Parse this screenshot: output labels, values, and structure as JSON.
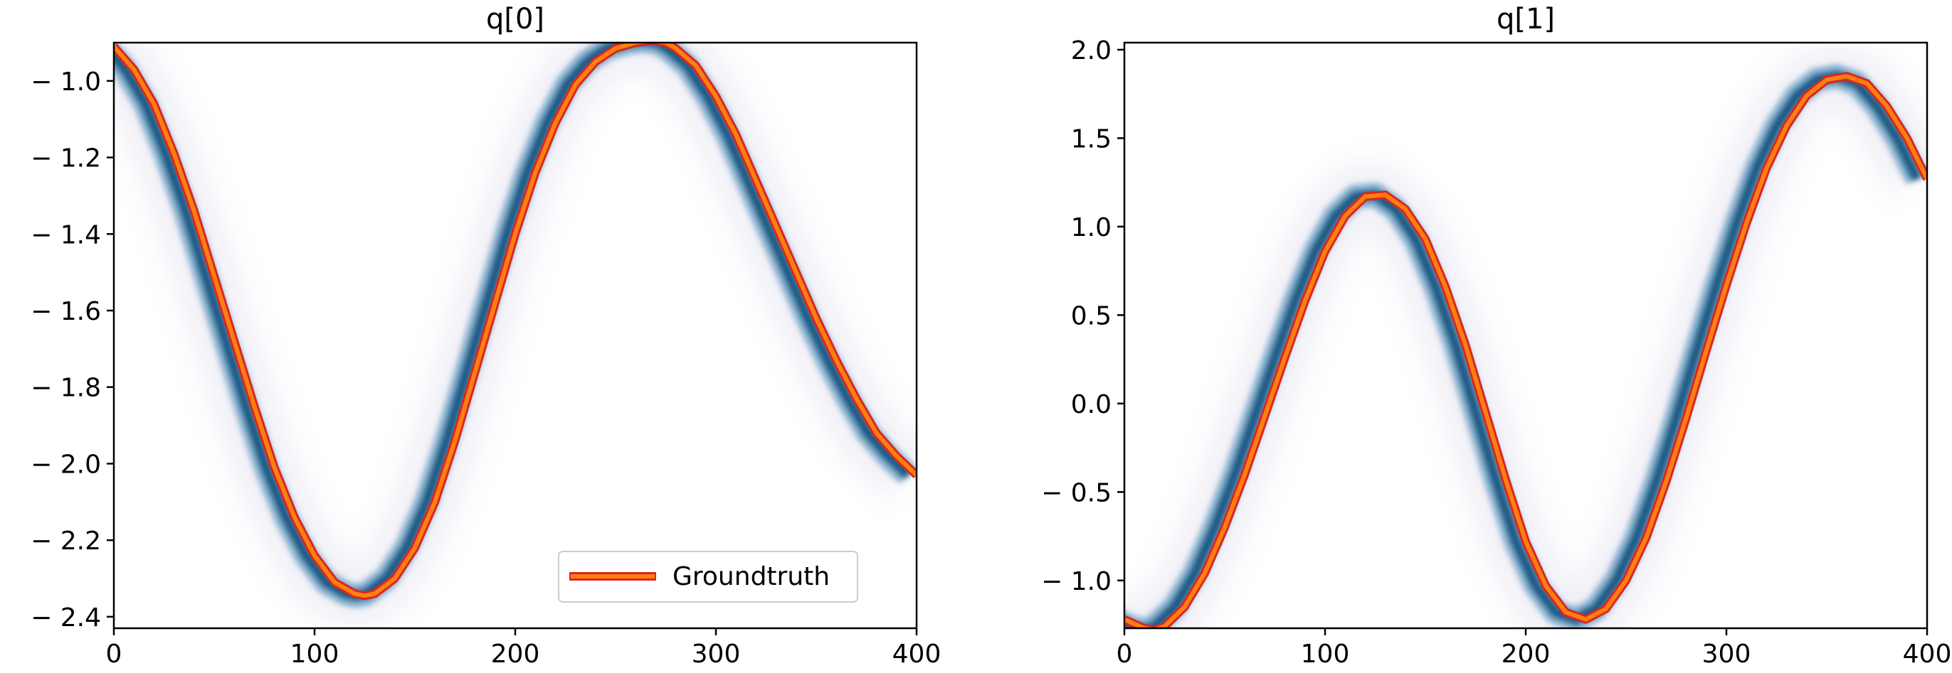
{
  "chart_data": [
    {
      "type": "line",
      "title": "q[0]",
      "xlabel": "",
      "ylabel": "",
      "xlim": [
        0,
        400
      ],
      "ylim": [
        -2.43,
        -0.9
      ],
      "y_inverted": true,
      "xticks": [
        0,
        100,
        200,
        300,
        400
      ],
      "xtick_labels": [
        "0",
        "100",
        "200",
        "300",
        "400"
      ],
      "yticks": [
        -1.0,
        -1.2,
        -1.4,
        -1.6,
        -1.8,
        -2.0,
        -2.2,
        -2.4
      ],
      "ytick_labels": [
        "− 1.0",
        "− 1.2",
        "− 1.4",
        "− 1.6",
        "− 1.8",
        "− 2.0",
        "− 2.2",
        "− 2.4"
      ],
      "grid": false,
      "legend": {
        "placement": "lower-right",
        "entries": [
          "Groundtruth"
        ]
      },
      "series": [
        {
          "name": "Groundtruth",
          "color": "#ff7f0e",
          "x": [
            0,
            10,
            20,
            30,
            40,
            50,
            60,
            70,
            80,
            90,
            100,
            110,
            120,
            125,
            130,
            140,
            150,
            160,
            170,
            180,
            190,
            200,
            210,
            220,
            230,
            240,
            250,
            260,
            268,
            275,
            280,
            290,
            300,
            310,
            320,
            330,
            340,
            350,
            360,
            370,
            380,
            390,
            400
          ],
          "y": [
            -0.91,
            -0.97,
            -1.06,
            -1.19,
            -1.34,
            -1.51,
            -1.68,
            -1.85,
            -2.01,
            -2.14,
            -2.24,
            -2.31,
            -2.34,
            -2.345,
            -2.34,
            -2.3,
            -2.22,
            -2.1,
            -1.94,
            -1.76,
            -1.58,
            -1.4,
            -1.24,
            -1.11,
            -1.01,
            -0.95,
            -0.915,
            -0.9,
            -0.895,
            -0.9,
            -0.915,
            -0.96,
            -1.04,
            -1.14,
            -1.26,
            -1.38,
            -1.5,
            -1.62,
            -1.73,
            -1.83,
            -1.92,
            -1.98,
            -2.03
          ]
        }
      ]
    },
    {
      "type": "line",
      "title": "q[1]",
      "xlabel": "",
      "ylabel": "",
      "xlim": [
        0,
        400
      ],
      "ylim": [
        -1.27,
        2.04
      ],
      "xticks": [
        0,
        100,
        200,
        300,
        400
      ],
      "xtick_labels": [
        "0",
        "100",
        "200",
        "300",
        "400"
      ],
      "yticks": [
        2.0,
        1.5,
        1.0,
        0.5,
        0.0,
        -0.5,
        -1.0
      ],
      "ytick_labels": [
        "2.0",
        "1.5",
        "1.0",
        "0.5",
        "0.0",
        "− 0.5",
        "− 1.0"
      ],
      "grid": false,
      "series": [
        {
          "name": "Groundtruth",
          "color": "#ff7f0e",
          "x": [
            0,
            10,
            15,
            20,
            30,
            40,
            50,
            60,
            70,
            80,
            90,
            100,
            110,
            120,
            130,
            140,
            150,
            160,
            170,
            180,
            190,
            200,
            210,
            220,
            230,
            240,
            250,
            260,
            270,
            280,
            290,
            300,
            310,
            320,
            330,
            340,
            350,
            360,
            370,
            380,
            390,
            400
          ],
          "y": [
            -1.22,
            -1.27,
            -1.28,
            -1.26,
            -1.15,
            -0.96,
            -0.7,
            -0.4,
            -0.07,
            0.26,
            0.58,
            0.86,
            1.06,
            1.17,
            1.18,
            1.1,
            0.93,
            0.66,
            0.33,
            -0.05,
            -0.43,
            -0.78,
            -1.03,
            -1.18,
            -1.22,
            -1.16,
            -1.0,
            -0.76,
            -0.44,
            -0.08,
            0.3,
            0.67,
            1.02,
            1.33,
            1.57,
            1.74,
            1.83,
            1.85,
            1.81,
            1.68,
            1.5,
            1.27
          ]
        }
      ]
    }
  ]
}
